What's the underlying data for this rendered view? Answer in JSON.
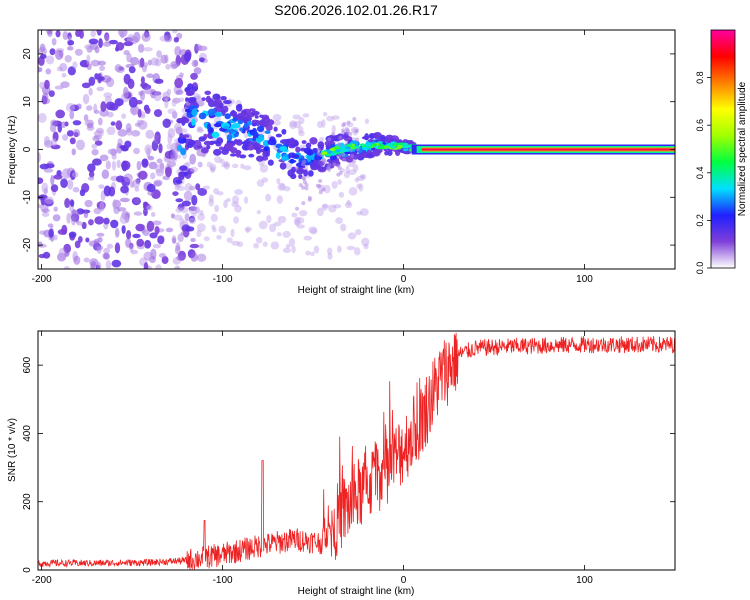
{
  "title": "S206.2026.102.01.26.R17",
  "chart_data": [
    {
      "type": "heatmap",
      "name": "spectrogram",
      "xlabel": "Height of straight line (km)",
      "ylabel": "Frequency (Hz)",
      "xlim": [
        -202,
        150
      ],
      "ylim": [
        -25,
        25
      ],
      "xticks": [
        -200,
        -100,
        0,
        100
      ],
      "yticks": [
        -20,
        -10,
        0,
        10,
        20
      ],
      "colorbar": {
        "label": "Normalized spectral amplitude",
        "range": [
          0,
          1
        ],
        "ticks": [
          "0.0",
          "0.2",
          "0.4",
          "0.6",
          "0.8"
        ],
        "colormap": [
          "#ffffff",
          "#7f3fd8",
          "#2020ff",
          "#00e0ff",
          "#00ff40",
          "#a0ff00",
          "#ffff00",
          "#ff8000",
          "#ff0000",
          "#ff00a0"
        ]
      },
      "features": {
        "carrier_line": {
          "x_start": 10,
          "x_end": 150,
          "freq_hz": 0,
          "amplitude": 0.95
        },
        "converging_track": [
          [
            -120,
            7
          ],
          [
            -100,
            5
          ],
          [
            -80,
            3
          ],
          [
            -60,
            -2
          ],
          [
            -45,
            -1
          ],
          [
            -30,
            0.5
          ],
          [
            -10,
            1
          ],
          [
            10,
            0.2
          ]
        ],
        "diffuse_region_x": [
          -202,
          -120
        ],
        "diffuse_amplitude": 0.15
      }
    },
    {
      "type": "line",
      "name": "snr",
      "xlabel": "Height of straight line (km)",
      "ylabel": "SNR (10 * v/v)",
      "xlim": [
        -202,
        150
      ],
      "ylim": [
        0,
        700
      ],
      "xticks": [
        -200,
        -100,
        0,
        100
      ],
      "yticks": [
        0,
        200,
        400,
        600
      ],
      "color": "#ee2222",
      "trend": {
        "x": [
          -202,
          -170,
          -140,
          -120,
          -100,
          -80,
          -60,
          -45,
          -35,
          -20,
          -5,
          10,
          20,
          30,
          40,
          60,
          100,
          150
        ],
        "y": [
          20,
          20,
          22,
          28,
          45,
          70,
          90,
          80,
          160,
          250,
          320,
          440,
          560,
          630,
          650,
          655,
          660,
          660
        ]
      }
    }
  ]
}
